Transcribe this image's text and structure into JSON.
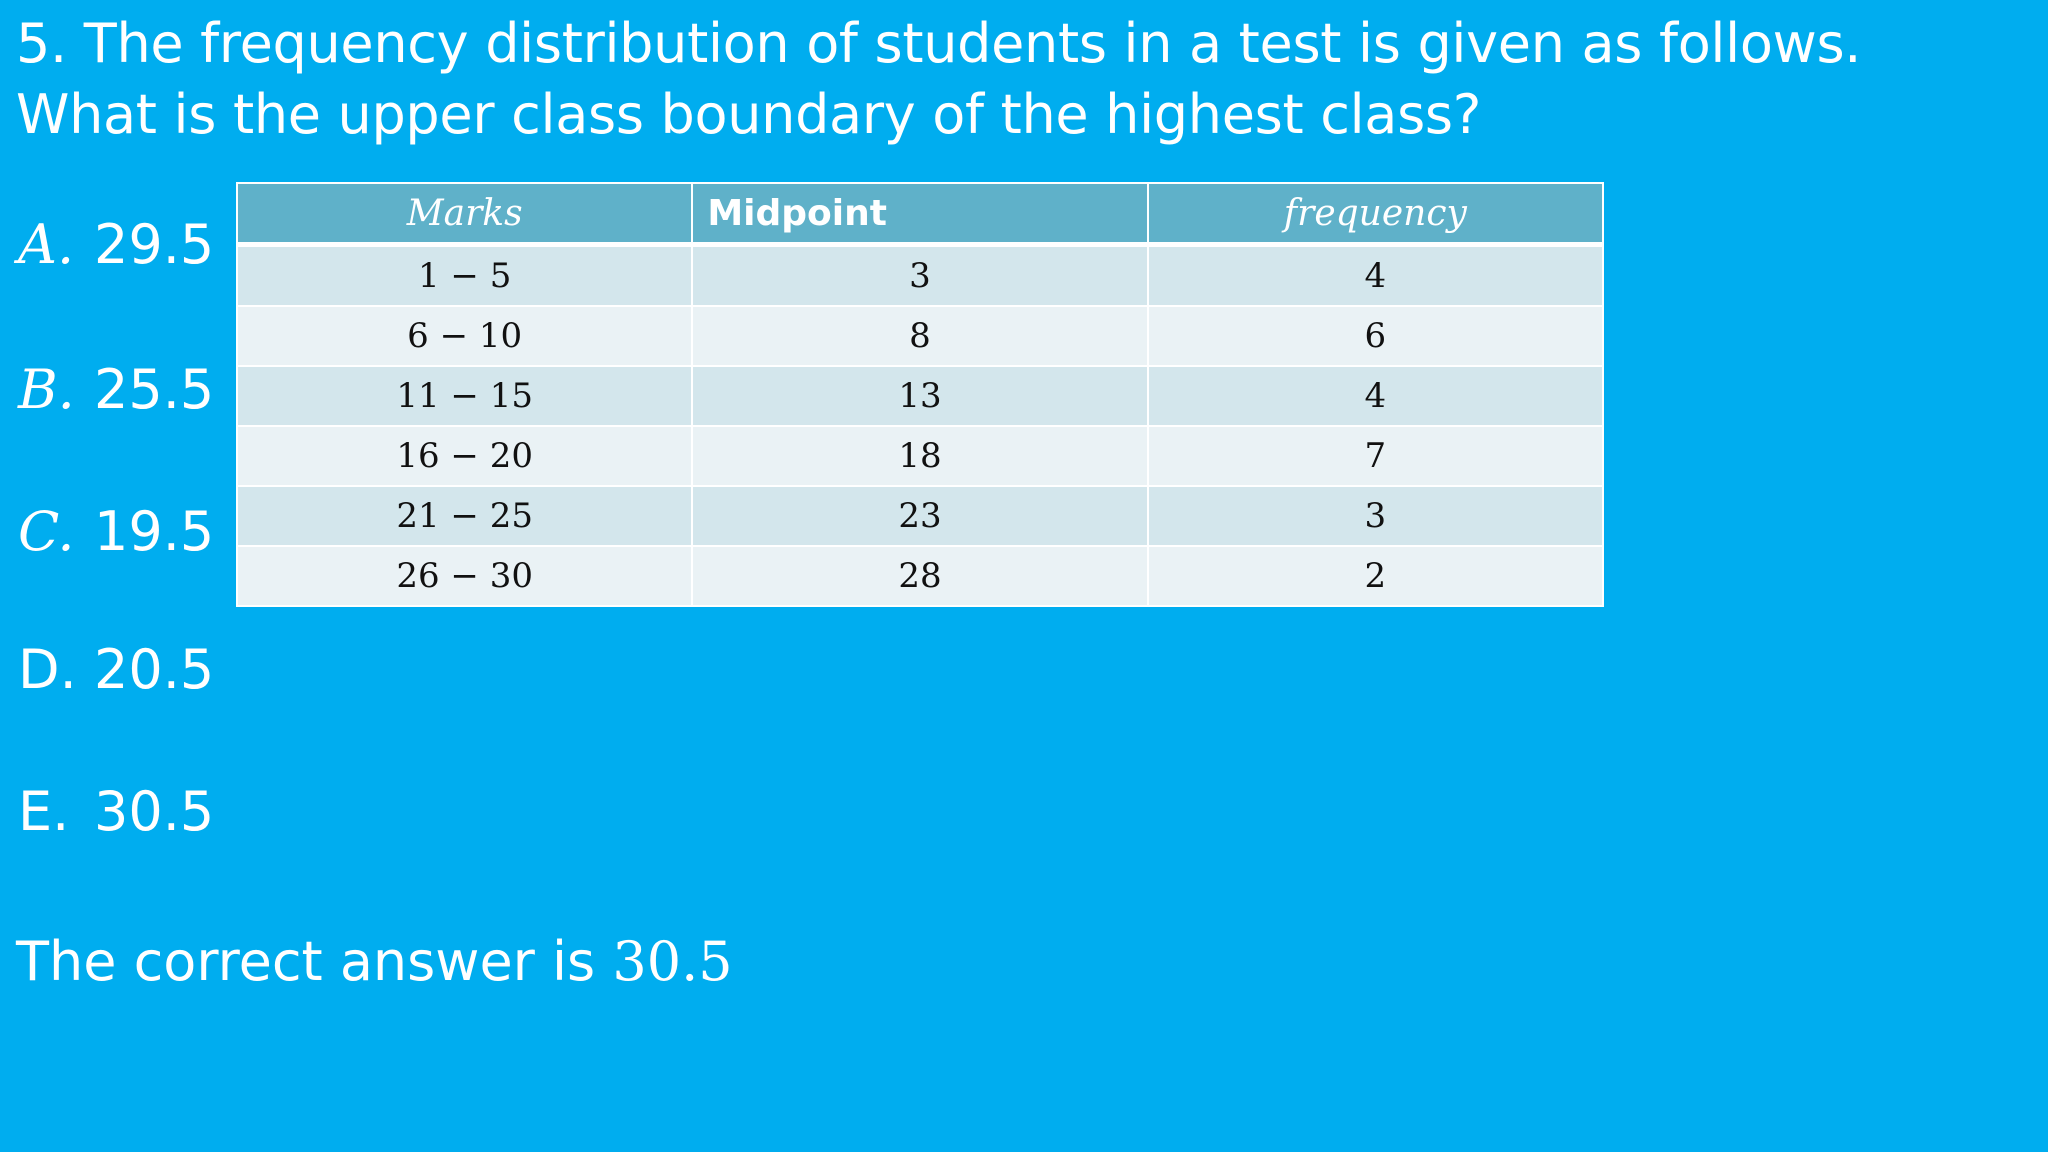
{
  "question": {
    "line1": "5. The frequency distribution of students in a test is given as follows.",
    "line2": "What is the upper class boundary of the highest class?"
  },
  "options": [
    {
      "letter": "A.",
      "value": "29.5"
    },
    {
      "letter": "B.",
      "value": "25.5"
    },
    {
      "letter": "C.",
      "value": "19.5"
    },
    {
      "letter": "D.",
      "value": "20.5"
    },
    {
      "letter": "E.",
      "value": "30.5"
    }
  ],
  "table": {
    "headers": [
      "Marks",
      "Midpoint",
      "frequency"
    ],
    "rows": [
      [
        "1 − 5",
        "3",
        "4"
      ],
      [
        "6 − 10",
        "8",
        "6"
      ],
      [
        "11 − 15",
        "13",
        "4"
      ],
      [
        "16 − 20",
        "18",
        "7"
      ],
      [
        "21 − 25",
        "23",
        "3"
      ],
      [
        "26 − 30",
        "28",
        "2"
      ]
    ]
  },
  "answer": {
    "text": "The correct answer is",
    "value": "30.5"
  },
  "colors": {
    "background": "#00adef",
    "header": "#5fb1c9",
    "row_dark": "#d3e6ec",
    "row_light": "#eaf2f5"
  }
}
